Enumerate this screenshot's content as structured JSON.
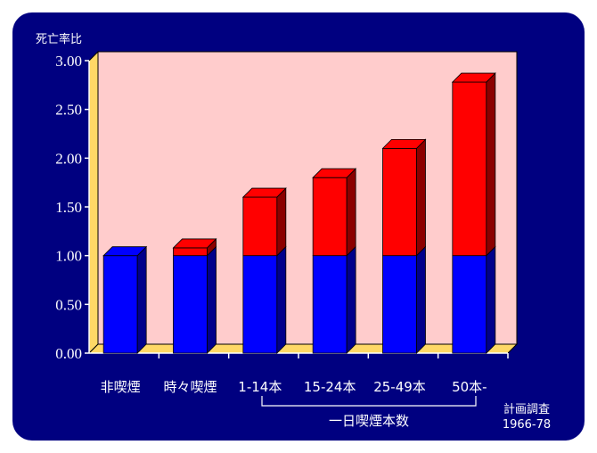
{
  "chart_data": {
    "type": "bar",
    "stacked": true,
    "y_axis_title": "死亡率比",
    "categories": [
      "非喫煙",
      "時々喫煙",
      "1-14本",
      "15-24本",
      "25-49本",
      "50本-"
    ],
    "series": [
      {
        "values": [
          1.0,
          1.0,
          1.0,
          1.0,
          1.0,
          1.0
        ]
      },
      {
        "values": [
          0.0,
          0.08,
          0.6,
          0.8,
          1.1,
          1.78
        ]
      }
    ],
    "ylim": [
      0,
      3.0
    ],
    "yticks": [
      "0.00",
      "0.50",
      "1.00",
      "1.50",
      "2.00",
      "2.50",
      "3.00"
    ],
    "group_label": "一日喫煙本数",
    "source_line1": "計画調査",
    "source_line2": "1966-78",
    "grid": false
  },
  "colors": {
    "background": "#000080",
    "plot_area": "#ffcccc",
    "wall_side": "#ffd866",
    "base_blue": "#0000ff",
    "top_red": "#ff0000"
  }
}
